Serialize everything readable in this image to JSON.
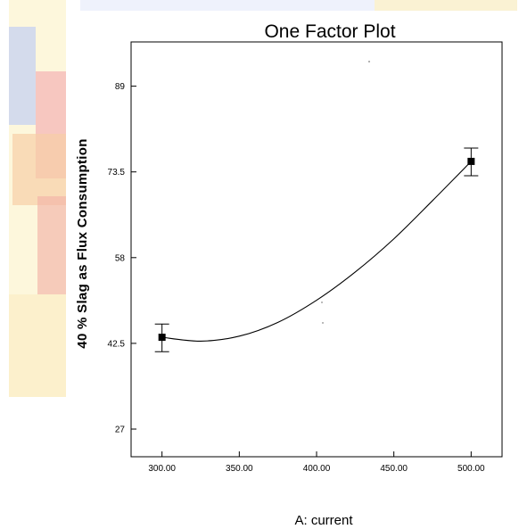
{
  "chart_data": {
    "type": "line",
    "title": "One Factor Plot",
    "xlabel": "A: current",
    "ylabel": "40 % Slag as Flux Consumption",
    "xlim": [
      280,
      520
    ],
    "ylim": [
      22,
      97
    ],
    "x_ticks": [
      "300.00",
      "350.00",
      "400.00",
      "450.00",
      "500.00"
    ],
    "x_tick_values": [
      300,
      350,
      400,
      450,
      500
    ],
    "y_ticks": [
      "27",
      "42.5",
      "58",
      "73.5",
      "89"
    ],
    "y_tick_values": [
      27,
      42.5,
      58,
      73.5,
      89
    ],
    "fit_curve": {
      "x": [
        300,
        325,
        350,
        375,
        400,
        425,
        450,
        475,
        500
      ],
      "y": [
        43.6,
        42.9,
        43.8,
        46.3,
        50.3,
        55.4,
        61.4,
        68.3,
        75.4
      ]
    },
    "points": [
      {
        "x": 300,
        "y": 43.6,
        "err_low": 41.0,
        "err_high": 46.0
      },
      {
        "x": 500,
        "y": 75.4,
        "err_low": 72.8,
        "err_high": 77.8
      }
    ],
    "grid": false,
    "legend": "none",
    "colors": {
      "line": "#000000",
      "marker": "#000000"
    }
  }
}
